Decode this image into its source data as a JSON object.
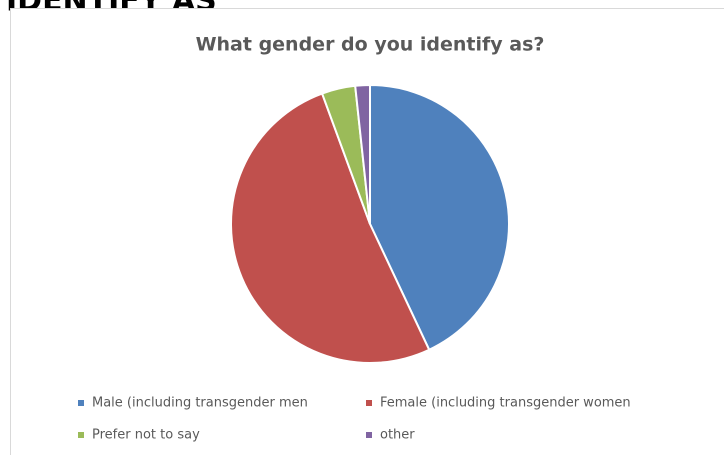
{
  "page_heading": "IDENTIFY AS",
  "chart_data": {
    "type": "pie",
    "title": "What gender do you identify as?",
    "categories": [
      "Male (including transgender men",
      "Female (including transgender women",
      "Prefer not to say",
      "other"
    ],
    "values": [
      43,
      51.4,
      3.9,
      1.7
    ],
    "colors": [
      "#4f81bd",
      "#c0504d",
      "#9bbb59",
      "#8064a2"
    ],
    "legend": "bottom"
  }
}
